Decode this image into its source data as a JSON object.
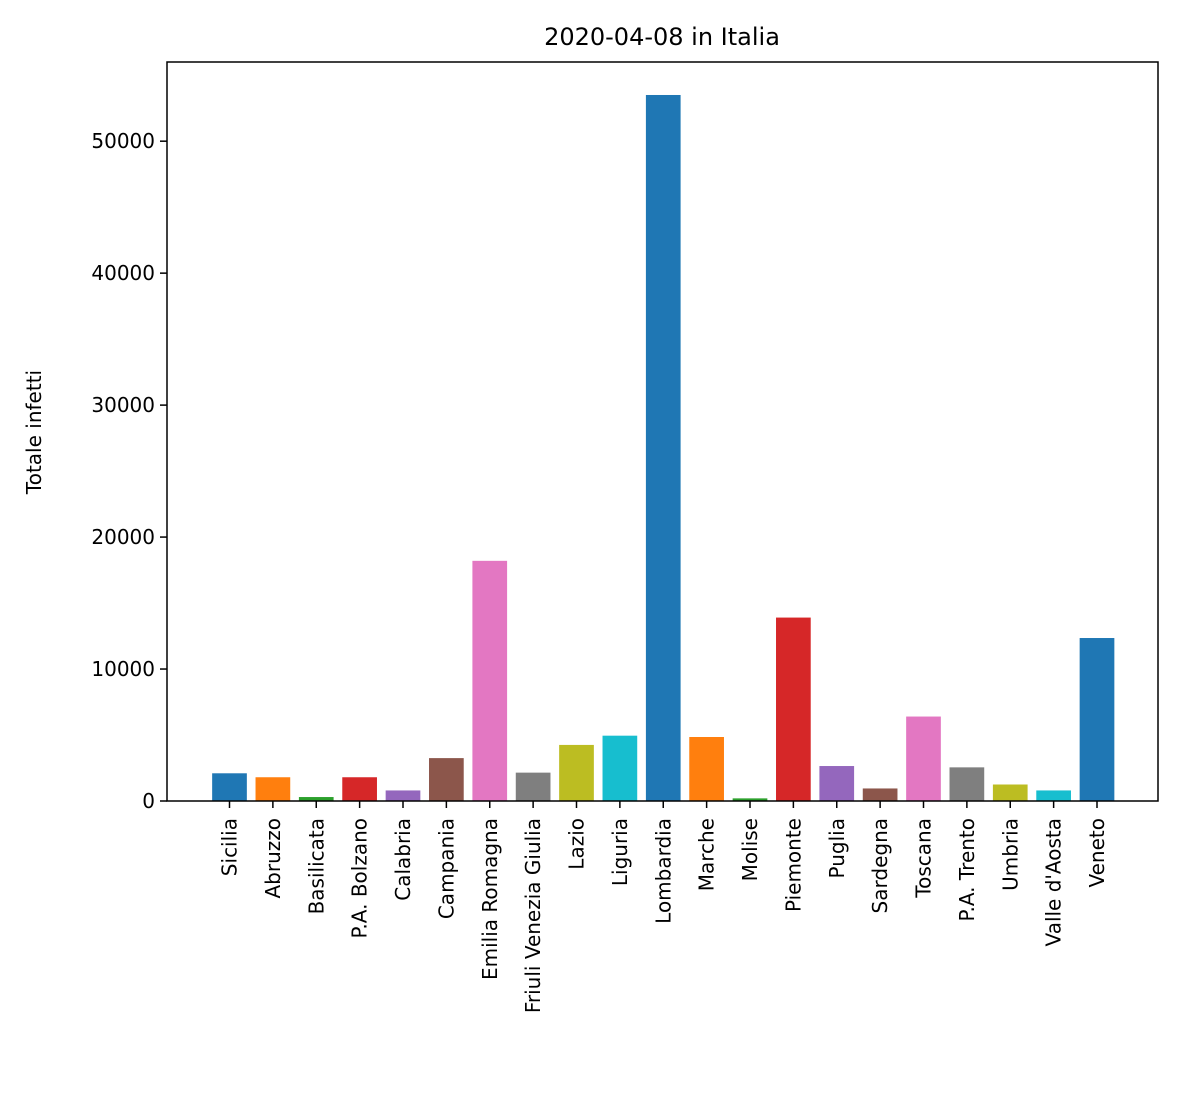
{
  "chart_data": {
    "type": "bar",
    "title": "2020-04-08 in Italia",
    "xlabel": "",
    "ylabel": "Totale infetti",
    "ylim": [
      0,
      56000
    ],
    "yticks": [
      0,
      10000,
      20000,
      30000,
      40000,
      50000
    ],
    "categories": [
      "Sicilia",
      "Abruzzo",
      "Basilicata",
      "P.A. Bolzano",
      "Calabria",
      "Campania",
      "Emilia Romagna",
      "Friuli Venezia Giulia",
      "Lazio",
      "Liguria",
      "Lombardia",
      "Marche",
      "Molise",
      "Piemonte",
      "Puglia",
      "Sardegna",
      "Toscana",
      "P.A. Trento",
      "Umbria",
      "Valle d'Aosta",
      "Veneto"
    ],
    "values": [
      2100,
      1800,
      300,
      1800,
      800,
      3250,
      18200,
      2150,
      4250,
      4950,
      53500,
      4850,
      200,
      13900,
      2650,
      950,
      6400,
      2550,
      1250,
      800,
      12350
    ],
    "colors": [
      "#1f77b4",
      "#ff7f0e",
      "#2ca02c",
      "#d62728",
      "#9467bd",
      "#8c564b",
      "#e377c2",
      "#7f7f7f",
      "#bcbd22",
      "#17becf",
      "#1f77b4",
      "#ff7f0e",
      "#2ca02c",
      "#d62728",
      "#9467bd",
      "#8c564b",
      "#e377c2",
      "#7f7f7f",
      "#bcbd22",
      "#17becf",
      "#1f77b4"
    ],
    "grid": false,
    "legend": "none"
  }
}
